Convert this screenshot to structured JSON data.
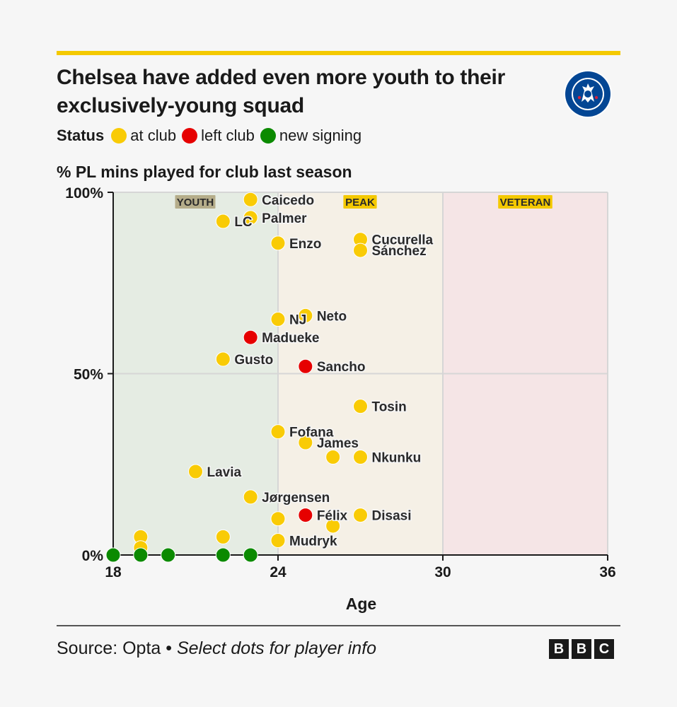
{
  "header": {
    "title": "Chelsea have added even more youth to their exclusively-young squad",
    "badge_text_top": "CHELSEA",
    "badge_text_bottom": "FOOTBALL CLUB"
  },
  "legend": {
    "title": "Status",
    "items": [
      {
        "label": "at club",
        "color": "#f9cb05"
      },
      {
        "label": "left club",
        "color": "#e60000"
      },
      {
        "label": "new signing",
        "color": "#0b8a00"
      }
    ]
  },
  "footer": {
    "source": "Source: Opta",
    "separator": " • ",
    "note": "Select dots for player info",
    "bbc_letters": [
      "B",
      "B",
      "C"
    ]
  },
  "chart_data": {
    "type": "scatter",
    "title": "",
    "xlabel": "Age",
    "ylabel": "% PL mins played for club last season",
    "xlim": [
      18,
      36
    ],
    "ylim": [
      0,
      100
    ],
    "x_ticks": [
      18,
      24,
      30,
      36
    ],
    "y_ticks": [
      {
        "value": 0,
        "label": "0%"
      },
      {
        "value": 50,
        "label": "50%"
      },
      {
        "value": 100,
        "label": "100%"
      }
    ],
    "grid": true,
    "zones": [
      {
        "label": "YOUTH",
        "from": 18,
        "to": 24,
        "color": "#e5ece3"
      },
      {
        "label": "PEAK",
        "from": 24,
        "to": 30,
        "color": "#f5f0e6"
      },
      {
        "label": "VETERAN",
        "from": 30,
        "to": 36,
        "color": "#f5e5e6"
      }
    ],
    "status_colors": {
      "at club": "#f9cb05",
      "left club": "#e60000",
      "new signing": "#0b8a00"
    },
    "points": [
      {
        "name": "Caicedo",
        "age": 23,
        "pct": 98,
        "status": "at club"
      },
      {
        "name": "Palmer",
        "age": 23,
        "pct": 93,
        "status": "at club"
      },
      {
        "name": "LC",
        "age": 22,
        "pct": 92,
        "status": "at club"
      },
      {
        "name": "Enzo",
        "age": 24,
        "pct": 86,
        "status": "at club"
      },
      {
        "name": "Cucurella",
        "age": 27,
        "pct": 87,
        "status": "at club"
      },
      {
        "name": "Sánchez",
        "age": 27,
        "pct": 84,
        "status": "at club"
      },
      {
        "name": "Neto",
        "age": 25,
        "pct": 66,
        "status": "at club"
      },
      {
        "name": "NJ",
        "age": 24,
        "pct": 65,
        "status": "at club"
      },
      {
        "name": "Madueke",
        "age": 23,
        "pct": 60,
        "status": "left club"
      },
      {
        "name": "Gusto",
        "age": 22,
        "pct": 54,
        "status": "at club"
      },
      {
        "name": "Sancho",
        "age": 25,
        "pct": 52,
        "status": "left club"
      },
      {
        "name": "Tosin",
        "age": 27,
        "pct": 41,
        "status": "at club"
      },
      {
        "name": "Fofana",
        "age": 24,
        "pct": 34,
        "status": "at club"
      },
      {
        "name": "James",
        "age": 25,
        "pct": 31,
        "status": "at club"
      },
      {
        "name": "",
        "age": 26,
        "pct": 27,
        "status": "at club"
      },
      {
        "name": "Nkunku",
        "age": 27,
        "pct": 27,
        "status": "at club"
      },
      {
        "name": "Lavia",
        "age": 21,
        "pct": 23,
        "status": "at club"
      },
      {
        "name": "Jørgensen",
        "age": 23,
        "pct": 16,
        "status": "at club"
      },
      {
        "name": "Félix",
        "age": 25,
        "pct": 11,
        "status": "left club"
      },
      {
        "name": "Disasi",
        "age": 27,
        "pct": 11,
        "status": "at club"
      },
      {
        "name": "",
        "age": 24,
        "pct": 10,
        "status": "at club"
      },
      {
        "name": "",
        "age": 26,
        "pct": 8,
        "status": "at club"
      },
      {
        "name": "",
        "age": 22,
        "pct": 5,
        "status": "at club"
      },
      {
        "name": "",
        "age": 19,
        "pct": 5,
        "status": "at club"
      },
      {
        "name": "Mudryk",
        "age": 24,
        "pct": 4,
        "status": "at club"
      },
      {
        "name": "",
        "age": 19,
        "pct": 2,
        "status": "at club"
      },
      {
        "name": "",
        "age": 18,
        "pct": 0,
        "status": "new signing"
      },
      {
        "name": "",
        "age": 19,
        "pct": 0,
        "status": "new signing"
      },
      {
        "name": "",
        "age": 20,
        "pct": 0,
        "status": "new signing"
      },
      {
        "name": "",
        "age": 22,
        "pct": 0,
        "status": "new signing"
      },
      {
        "name": "",
        "age": 23,
        "pct": 0,
        "status": "new signing"
      }
    ]
  }
}
